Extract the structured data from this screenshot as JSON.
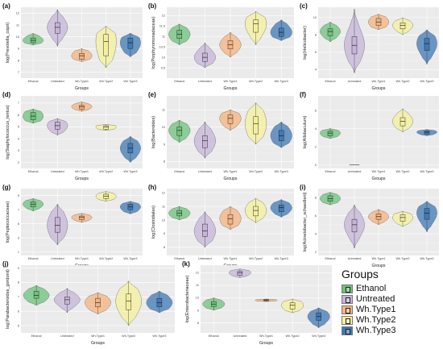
{
  "legend": {
    "title": "Groups",
    "items": [
      {
        "label": "Ethanol",
        "color": "#6cc27a"
      },
      {
        "label": "Untreated",
        "color": "#c6b4d8"
      },
      {
        "label": "Wh.Type1",
        "color": "#f5b37e"
      },
      {
        "label": "Wh.Type2",
        "color": "#f5f19b"
      },
      {
        "label": "Wh.Type3",
        "color": "#3d78b5"
      }
    ]
  },
  "chart_data": [
    {
      "panel": "(a)",
      "type": "violin",
      "ylabel": "log(Prevotella_copri)",
      "xlabel": "Groups",
      "categories": [
        "Ethanol",
        "Untreated",
        "Wh.Type1",
        "Wh.Type2",
        "Wh.Type3"
      ],
      "ylim": [
        6.5,
        12.5
      ],
      "yticks": [
        7,
        8,
        9,
        10,
        11,
        12
      ],
      "violins": [
        {
          "min": 9.3,
          "q1": 9.5,
          "median": 9.7,
          "q3": 9.9,
          "max": 10.3
        },
        {
          "min": 9.2,
          "q1": 10.3,
          "median": 10.8,
          "q3": 11.2,
          "max": 12.3
        },
        {
          "min": 7.9,
          "q1": 8.1,
          "median": 8.4,
          "q3": 8.6,
          "max": 9.0
        },
        {
          "min": 7.4,
          "q1": 8.4,
          "median": 9.6,
          "q3": 10.2,
          "max": 10.9
        },
        {
          "min": 8.3,
          "q1": 9.0,
          "median": 9.5,
          "q3": 9.9,
          "max": 10.3
        }
      ]
    },
    {
      "panel": "(b)",
      "type": "violin",
      "ylabel": "log(Porphyromonadaceae)",
      "xlabel": "Groups",
      "categories": [
        "Ethanol",
        "Untreated",
        "Wh.Type1",
        "Wh.Type2",
        "Wh.Type3"
      ],
      "ylim": [
        9.0,
        12.4
      ],
      "yticks": [
        9.5,
        10.0,
        10.5,
        11.0,
        11.5,
        12.0
      ],
      "violins": [
        {
          "min": 10.6,
          "q1": 10.9,
          "median": 11.1,
          "q3": 11.3,
          "max": 11.6
        },
        {
          "min": 9.5,
          "q1": 9.8,
          "median": 10.0,
          "q3": 10.2,
          "max": 10.7
        },
        {
          "min": 10.0,
          "q1": 10.4,
          "median": 10.6,
          "q3": 10.8,
          "max": 11.2
        },
        {
          "min": 10.6,
          "q1": 11.2,
          "median": 11.6,
          "q3": 11.8,
          "max": 12.2
        },
        {
          "min": 10.8,
          "q1": 11.0,
          "median": 11.2,
          "q3": 11.4,
          "max": 11.8
        }
      ]
    },
    {
      "panel": "(c)",
      "type": "violin",
      "ylabel": "log(Helicobacter)",
      "xlabel": "Groups",
      "categories": [
        "Ethanol",
        "Untreated",
        "Wh.Type1",
        "Wh.Type2",
        "Wh.Type3"
      ],
      "ylim": [
        3.0,
        11.2
      ],
      "yticks": [
        4,
        6,
        8,
        10
      ],
      "violins": [
        {
          "min": 7.2,
          "q1": 7.9,
          "median": 8.4,
          "q3": 8.7,
          "max": 9.5
        },
        {
          "min": 3.6,
          "q1": 5.8,
          "median": 6.8,
          "q3": 7.8,
          "max": 11.0
        },
        {
          "min": 8.6,
          "q1": 9.1,
          "median": 9.5,
          "q3": 9.9,
          "max": 10.4
        },
        {
          "min": 8.0,
          "q1": 8.7,
          "median": 9.1,
          "q3": 9.4,
          "max": 10.0
        },
        {
          "min": 4.6,
          "q1": 6.2,
          "median": 7.0,
          "q3": 7.6,
          "max": 8.6
        }
      ]
    },
    {
      "panel": "(d)",
      "type": "violin",
      "ylabel": "log(Staphylococcus_lentus)",
      "xlabel": "Groups",
      "categories": [
        "Ethanol",
        "Untreated",
        "Wh.Type1",
        "Wh.Type2",
        "Wh.Type3"
      ],
      "ylim": [
        1.5,
        7.6
      ],
      "yticks": [
        2,
        3,
        4,
        5,
        6,
        7
      ],
      "violins": [
        {
          "min": 5.3,
          "q1": 5.6,
          "median": 5.9,
          "q3": 6.2,
          "max": 6.5
        },
        {
          "min": 4.3,
          "q1": 4.8,
          "median": 5.1,
          "q3": 5.4,
          "max": 5.7
        },
        {
          "min": 6.3,
          "q1": 6.5,
          "median": 6.7,
          "q3": 6.8,
          "max": 7.1
        },
        {
          "min": 4.7,
          "q1": 4.8,
          "median": 5.0,
          "q3": 5.1,
          "max": 5.2
        },
        {
          "min": 2.0,
          "q1": 2.8,
          "median": 3.2,
          "q3": 3.6,
          "max": 4.2
        }
      ]
    },
    {
      "panel": "(e)",
      "type": "violin",
      "ylabel": "log(Bacteroides)",
      "xlabel": "Groups",
      "categories": [
        "Ethanol",
        "Untreated",
        "Wh.Type1",
        "Wh.Type2",
        "Wh.Type3"
      ],
      "ylim": [
        7.6,
        11.8
      ],
      "yticks": [
        8,
        9,
        10,
        11
      ],
      "violins": [
        {
          "min": 9.1,
          "q1": 9.5,
          "median": 9.8,
          "q3": 10.0,
          "max": 10.4
        },
        {
          "min": 8.2,
          "q1": 8.8,
          "median": 9.2,
          "q3": 9.5,
          "max": 10.3
        },
        {
          "min": 9.8,
          "q1": 10.2,
          "median": 10.5,
          "q3": 10.7,
          "max": 11.0
        },
        {
          "min": 9.0,
          "q1": 9.6,
          "median": 10.2,
          "q3": 10.6,
          "max": 11.4
        },
        {
          "min": 8.8,
          "q1": 9.2,
          "median": 9.5,
          "q3": 9.8,
          "max": 10.3
        }
      ]
    },
    {
      "panel": "(f)",
      "type": "violin",
      "ylabel": "log(Allobaculum)",
      "xlabel": "Groups",
      "categories": [
        "Ethanol",
        "Untreated",
        "Wh.Type1",
        "Wh.Type2",
        "Wh.Type3"
      ],
      "ylim": [
        -0.4,
        7.6
      ],
      "yticks": [
        0,
        2,
        4,
        6
      ],
      "violins": [
        {
          "min": 2.9,
          "q1": 3.2,
          "median": 3.5,
          "q3": 3.7,
          "max": 4.0
        },
        {
          "min": 0.0,
          "q1": 0.0,
          "median": 0.0,
          "q3": 0.0,
          "max": 0.0
        },
        null,
        {
          "min": 3.6,
          "q1": 4.3,
          "median": 4.8,
          "q3": 5.2,
          "max": 6.2
        },
        {
          "min": 3.2,
          "q1": 3.4,
          "median": 3.6,
          "q3": 3.7,
          "max": 3.9
        }
      ]
    },
    {
      "panel": "(g)",
      "type": "violin",
      "ylabel": "log(Peptococcaceae)",
      "xlabel": "Groups",
      "categories": [
        "Ethanol",
        "Untreated",
        "Wh.Type1",
        "Wh.Type2",
        "Wh.Type3"
      ],
      "ylim": [
        0.5,
        10.0
      ],
      "yticks": [
        1,
        3,
        5,
        7,
        9
      ],
      "violins": [
        {
          "min": 6.8,
          "q1": 7.4,
          "median": 7.8,
          "q3": 8.1,
          "max": 8.6
        },
        {
          "min": 2.0,
          "q1": 3.8,
          "median": 4.8,
          "q3": 5.9,
          "max": 7.8
        },
        {
          "min": 5.2,
          "q1": 5.6,
          "median": 5.9,
          "q3": 6.1,
          "max": 6.5
        },
        {
          "min": 8.2,
          "q1": 8.6,
          "median": 8.9,
          "q3": 9.2,
          "max": 9.6
        },
        {
          "min": 6.4,
          "q1": 7.0,
          "median": 7.4,
          "q3": 7.8,
          "max": 8.2
        }
      ]
    },
    {
      "panel": "(h)",
      "type": "violin",
      "ylabel": "log(Clostridiales)",
      "xlabel": "Groups",
      "categories": [
        "Ethanol",
        "Untreated",
        "Wh.Type1",
        "Wh.Type2",
        "Wh.Type3"
      ],
      "ylim": [
        7.4,
        12.3
      ],
      "yticks": [
        8,
        9,
        10,
        11,
        12
      ],
      "violins": [
        {
          "min": 10.0,
          "q1": 10.3,
          "median": 10.5,
          "q3": 10.7,
          "max": 11.0
        },
        {
          "min": 8.0,
          "q1": 8.8,
          "median": 9.2,
          "q3": 9.7,
          "max": 10.6
        },
        {
          "min": 9.3,
          "q1": 9.7,
          "median": 10.1,
          "q3": 10.4,
          "max": 11.0
        },
        {
          "min": 9.8,
          "q1": 10.3,
          "median": 10.7,
          "q3": 11.0,
          "max": 11.6
        },
        {
          "min": 10.2,
          "q1": 10.6,
          "median": 10.9,
          "q3": 11.1,
          "max": 11.5
        }
      ]
    },
    {
      "panel": "(i)",
      "type": "violin",
      "ylabel": "log(Acinetobacter_schaedlerii)",
      "xlabel": "Groups",
      "categories": [
        "Ethanol",
        "Untreated",
        "Wh.Type1",
        "Wh.Type2",
        "Wh.Type3"
      ],
      "ylim": [
        1.6,
        9.0
      ],
      "yticks": [
        2,
        4,
        6,
        8
      ],
      "violins": [
        {
          "min": 7.2,
          "q1": 7.6,
          "median": 7.9,
          "q3": 8.2,
          "max": 8.6
        },
        {
          "min": 2.4,
          "q1": 4.2,
          "median": 5.0,
          "q3": 5.6,
          "max": 7.2
        },
        {
          "min": 5.0,
          "q1": 5.6,
          "median": 5.9,
          "q3": 6.2,
          "max": 6.7
        },
        {
          "min": 4.8,
          "q1": 5.4,
          "median": 5.8,
          "q3": 6.1,
          "max": 6.5
        },
        {
          "min": 4.2,
          "q1": 5.6,
          "median": 6.3,
          "q3": 6.8,
          "max": 7.6
        }
      ]
    },
    {
      "panel": "(j)",
      "type": "violin",
      "ylabel": "log(Parabacteroides_gordonii)",
      "xlabel": "Groups",
      "categories": [
        "Ethanol",
        "Untreated",
        "Wh.Type1",
        "Wh.Type2",
        "Wh.Type3"
      ],
      "ylim": [
        4.5,
        9.2
      ],
      "yticks": [
        5,
        6,
        7,
        8,
        9
      ],
      "violins": [
        {
          "min": 6.4,
          "q1": 6.9,
          "median": 7.1,
          "q3": 7.4,
          "max": 7.8
        },
        {
          "min": 5.9,
          "q1": 6.5,
          "median": 6.8,
          "q3": 7.0,
          "max": 7.6
        },
        {
          "min": 5.8,
          "q1": 6.3,
          "median": 6.6,
          "q3": 6.9,
          "max": 7.3
        },
        {
          "min": 5.0,
          "q1": 6.1,
          "median": 6.7,
          "q3": 7.2,
          "max": 8.1
        },
        {
          "min": 5.9,
          "q1": 6.3,
          "median": 6.6,
          "q3": 6.9,
          "max": 7.4
        }
      ]
    },
    {
      "panel": "(k)",
      "type": "violin",
      "ylabel": "log(Enterobacteriaceae)",
      "xlabel": "Groups",
      "categories": [
        "Ethanol",
        "Untreated",
        "Wh.Type1",
        "Wh.Type2",
        "Wh.Type3"
      ],
      "ylim": [
        7.2,
        12.6
      ],
      "yticks": [
        8,
        9,
        10,
        11,
        12
      ],
      "violins": [
        {
          "min": 9.0,
          "q1": 9.3,
          "median": 9.5,
          "q3": 9.7,
          "max": 10.0
        },
        {
          "min": 11.6,
          "q1": 11.8,
          "median": 12.0,
          "q3": 12.1,
          "max": 12.3
        },
        {
          "min": 9.7,
          "q1": 9.75,
          "median": 9.8,
          "q3": 9.85,
          "max": 9.9
        },
        {
          "min": 8.8,
          "q1": 9.1,
          "median": 9.4,
          "q3": 9.6,
          "max": 9.9
        },
        {
          "min": 7.6,
          "q1": 8.2,
          "median": 8.5,
          "q3": 8.8,
          "max": 9.2
        }
      ]
    }
  ]
}
